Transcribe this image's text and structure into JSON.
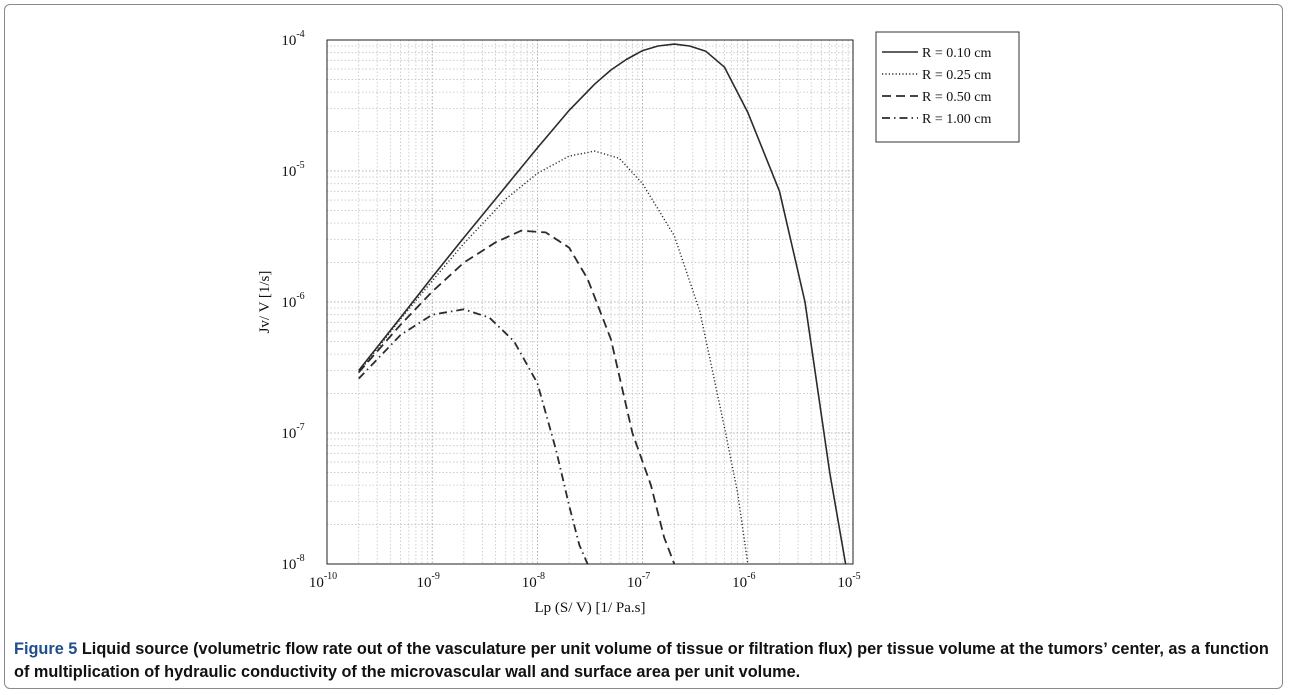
{
  "caption": {
    "label": "Figure 5",
    "text": " Liquid source (volumetric flow rate out of the vasculature per unit volume of tissue or filtration flux) per tissue volume at the tumors’ center, as a function of multiplication of hydraulic conductivity of the microvascular wall and surface area per unit volume."
  },
  "chart_data": {
    "type": "line",
    "xscale": "log",
    "yscale": "log",
    "xlim": [
      1e-10,
      1e-05
    ],
    "ylim": [
      1e-08,
      0.0001
    ],
    "grid": true,
    "legend_position": "top-right-outside",
    "xlabel": "Lp (S/ V) [1/ Pa.s]",
    "ylabel": "Jv/ V [1/s]",
    "xticks": [
      {
        "base": "10",
        "exp": "-10"
      },
      {
        "base": "10",
        "exp": "-9"
      },
      {
        "base": "10",
        "exp": "-8"
      },
      {
        "base": "10",
        "exp": "-7"
      },
      {
        "base": "10",
        "exp": "-6"
      },
      {
        "base": "10",
        "exp": "-5"
      }
    ],
    "yticks": [
      {
        "base": "10",
        "exp": "-8"
      },
      {
        "base": "10",
        "exp": "-7"
      },
      {
        "base": "10",
        "exp": "-6"
      },
      {
        "base": "10",
        "exp": "-5"
      },
      {
        "base": "10",
        "exp": "-4"
      }
    ],
    "series": [
      {
        "name": "R = 0.10 cm",
        "dash": "solid",
        "x": [
          2e-10,
          5e-10,
          1e-09,
          2e-09,
          5e-09,
          1e-08,
          2e-08,
          3.5e-08,
          5e-08,
          7e-08,
          1e-07,
          1.4e-07,
          2e-07,
          2.8e-07,
          4e-07,
          6e-07,
          1e-06,
          2e-06,
          3.5e-06,
          6e-06,
          8.5e-06
        ],
        "y": [
          3e-07,
          7.6e-07,
          1.55e-06,
          3.1e-06,
          7.6e-06,
          1.5e-05,
          2.9e-05,
          4.6e-05,
          5.9e-05,
          7.1e-05,
          8.3e-05,
          9e-05,
          9.3e-05,
          9e-05,
          8.2e-05,
          6.2e-05,
          2.8e-05,
          7e-06,
          1e-06,
          5e-08,
          1e-08
        ]
      },
      {
        "name": "R = 0.25 cm",
        "dash": "dotted",
        "x": [
          2e-10,
          5e-10,
          1e-09,
          2e-09,
          5e-09,
          1e-08,
          2e-08,
          3.5e-08,
          6e-08,
          1e-07,
          2e-07,
          3.5e-07,
          6e-07,
          8e-07,
          1e-06
        ],
        "y": [
          2.9e-07,
          7.4e-07,
          1.45e-06,
          2.8e-06,
          6.1e-06,
          9.6e-06,
          1.3e-05,
          1.42e-05,
          1.25e-05,
          8e-06,
          3.2e-06,
          8.5e-07,
          1.1e-07,
          3.5e-08,
          1e-08
        ]
      },
      {
        "name": "R = 0.50 cm",
        "dash": "dashed",
        "x": [
          2e-10,
          5e-10,
          1e-09,
          2e-09,
          4e-09,
          7e-09,
          1.2e-08,
          2e-08,
          3e-08,
          5e-08,
          8e-08,
          1.2e-07,
          1.6e-07,
          2e-07
        ],
        "y": [
          2.9e-07,
          6.7e-07,
          1.2e-06,
          2e-06,
          2.85e-06,
          3.5e-06,
          3.4e-06,
          2.6e-06,
          1.5e-06,
          5.2e-07,
          1e-07,
          4e-08,
          1.6e-08,
          1e-08
        ]
      },
      {
        "name": "R = 1.00 cm",
        "dash": "dashdot",
        "x": [
          2e-10,
          5e-10,
          1e-09,
          2e-09,
          3.5e-09,
          6e-09,
          1e-08,
          1.5e-08,
          2e-08,
          2.5e-08,
          3e-08
        ],
        "y": [
          2.6e-07,
          5.6e-07,
          8e-07,
          8.8e-07,
          7.6e-07,
          5e-07,
          2.4e-07,
          7.5e-08,
          2.8e-08,
          1.4e-08,
          1e-08
        ]
      }
    ]
  }
}
